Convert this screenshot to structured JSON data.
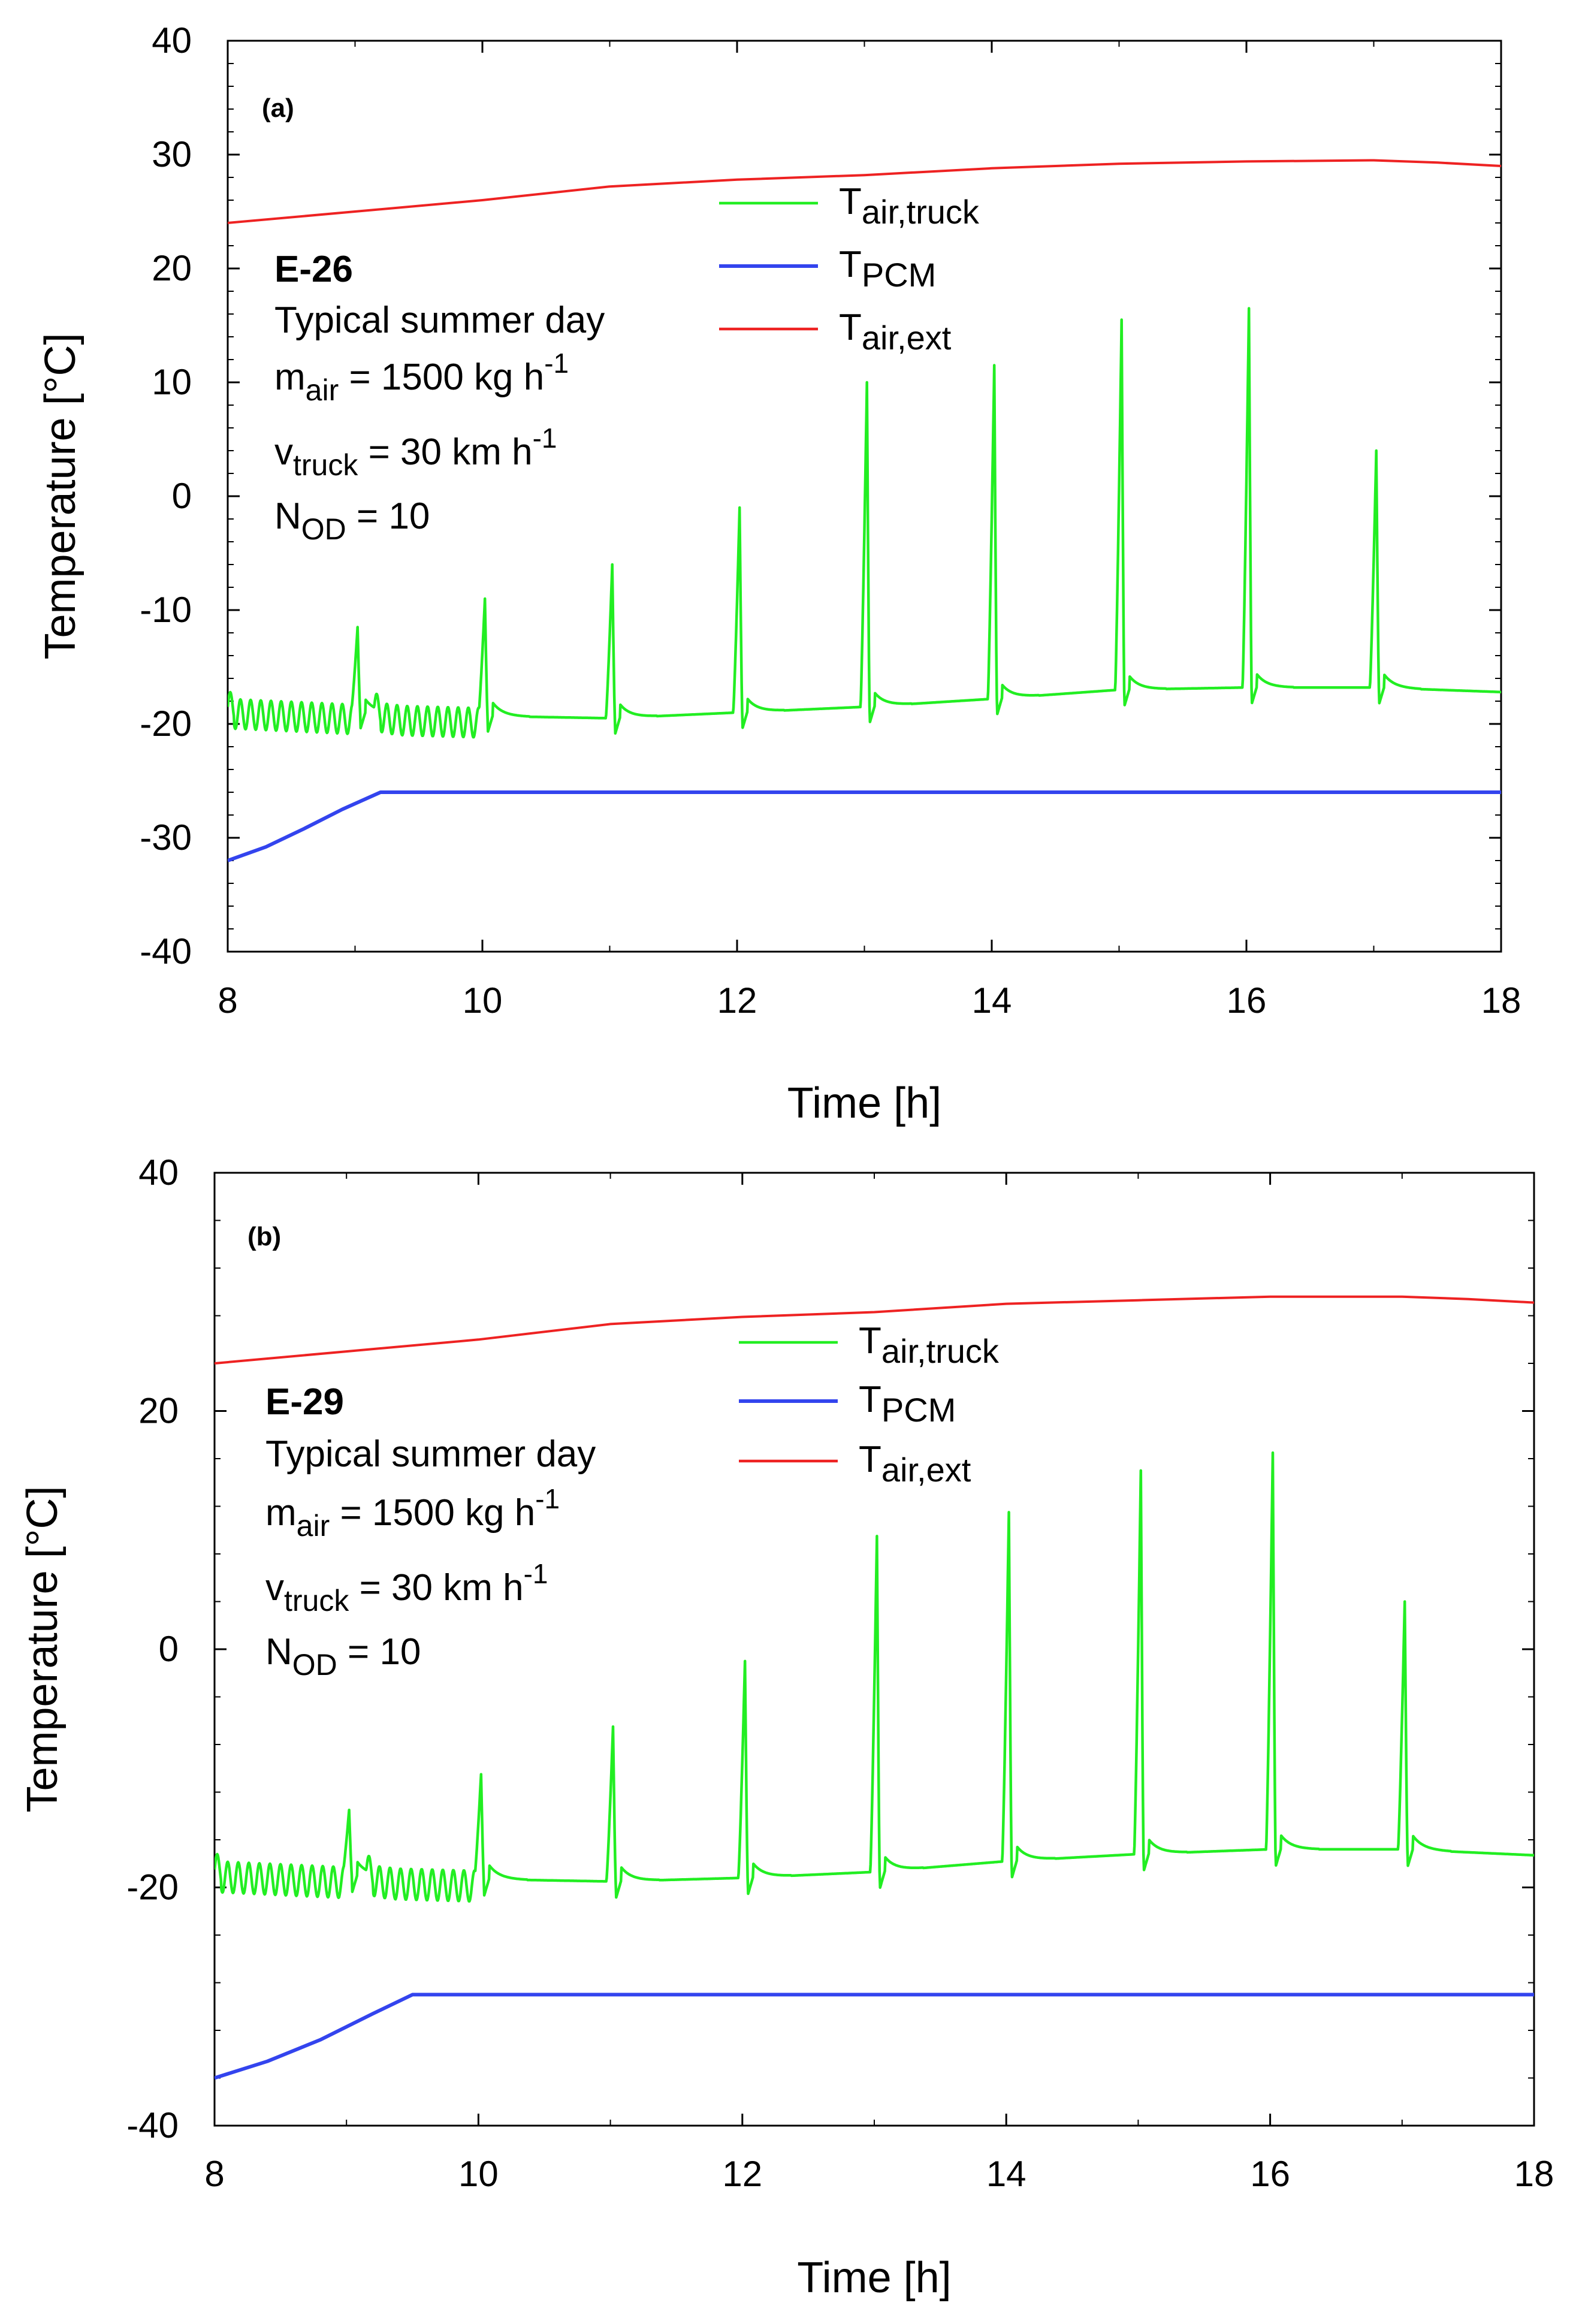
{
  "figure": {
    "panels": [
      "a",
      "b"
    ]
  },
  "chart_data": [
    {
      "type": "line",
      "panel_label": "(a)",
      "xlabel": "Time [h]",
      "ylabel": "Temperature [°C]",
      "xlim": [
        8,
        18
      ],
      "ylim": [
        -40,
        40
      ],
      "xticks": [
        8,
        10,
        12,
        14,
        16,
        18
      ],
      "yticks": [
        -40,
        -30,
        -20,
        -10,
        0,
        10,
        20,
        30,
        40
      ],
      "grid": false,
      "legend": {
        "placement": "upper-center",
        "entries": [
          {
            "main": "T",
            "sub": "air,truck",
            "color": "#22ee22"
          },
          {
            "main": "T",
            "sub": "PCM",
            "color": "#3344ee"
          },
          {
            "main": "T",
            "sub": "air,ext",
            "color": "#ee2222"
          }
        ]
      },
      "annotations": {
        "case_id": "E-26",
        "condition": "Typical summer day",
        "mass_flow": {
          "main": "m",
          "sub": "air",
          "value": " = 1500 kg h",
          "sup": "-1"
        },
        "velocity": {
          "main": "v",
          "sub": "truck",
          "value": " = 30 km h",
          "sup": "-1"
        },
        "openings": {
          "main": "N",
          "sub": "OD",
          "value": " = 10"
        }
      },
      "series": [
        {
          "name": "T_air,ext",
          "color": "#ee2222",
          "x": [
            8,
            9,
            10,
            11,
            12,
            13,
            14,
            15,
            16,
            17,
            17.5,
            18
          ],
          "y": [
            24,
            25,
            26,
            27.2,
            27.8,
            28.2,
            28.8,
            29.2,
            29.4,
            29.5,
            29.3,
            29
          ]
        },
        {
          "name": "T_PCM",
          "color": "#3344ee",
          "x": [
            8,
            8.3,
            8.6,
            8.9,
            9.2,
            18
          ],
          "y": [
            -32,
            -30.8,
            -29.2,
            -27.5,
            -26,
            -26
          ]
        },
        {
          "name": "T_air,truck",
          "color": "#22ee22",
          "base_x": [
            8,
            9,
            10,
            11,
            12,
            13,
            14,
            15,
            16,
            17,
            18
          ],
          "base_y": [
            -18.5,
            -19,
            -19.3,
            -19.5,
            -19,
            -18.5,
            -17.8,
            -17,
            -16.8,
            -16.8,
            -17.2
          ],
          "peaks": [
            {
              "t": 9.02,
              "peak": -11.5
            },
            {
              "t": 10.02,
              "peak": -9
            },
            {
              "t": 11.02,
              "peak": -6
            },
            {
              "t": 12.02,
              "peak": -1
            },
            {
              "t": 13.02,
              "peak": 10
            },
            {
              "t": 14.02,
              "peak": 11.5
            },
            {
              "t": 15.02,
              "peak": 15.5
            },
            {
              "t": 16.02,
              "peak": 16.5
            },
            {
              "t": 17.02,
              "peak": 4
            }
          ],
          "oscillation_ranges": [
            [
              8,
              9
            ],
            [
              9.15,
              10
            ]
          ]
        }
      ]
    },
    {
      "type": "line",
      "panel_label": "(b)",
      "xlabel": "Time [h]",
      "ylabel": "Temperature [°C]",
      "xlim": [
        8,
        18
      ],
      "ylim": [
        -40,
        40
      ],
      "xticks": [
        8,
        10,
        12,
        14,
        16,
        18
      ],
      "yticks": [
        -40,
        -20,
        0,
        20,
        40
      ],
      "grid": false,
      "legend": {
        "placement": "upper-center",
        "entries": [
          {
            "main": "T",
            "sub": "air,truck",
            "color": "#22ee22"
          },
          {
            "main": "T",
            "sub": "PCM",
            "color": "#3344ee"
          },
          {
            "main": "T",
            "sub": "air,ext",
            "color": "#ee2222"
          }
        ]
      },
      "annotations": {
        "case_id": "E-29",
        "condition": "Typical summer day",
        "mass_flow": {
          "main": "m",
          "sub": "air",
          "value": " = 1500 kg h",
          "sup": "-1"
        },
        "velocity": {
          "main": "v",
          "sub": "truck",
          "value": " = 30 km h",
          "sup": "-1"
        },
        "openings": {
          "main": "N",
          "sub": "OD",
          "value": " = 10"
        }
      },
      "series": [
        {
          "name": "T_air,ext",
          "color": "#ee2222",
          "x": [
            8,
            9,
            10,
            11,
            12,
            13,
            14,
            15,
            16,
            17,
            17.5,
            18
          ],
          "y": [
            24,
            25,
            26,
            27.3,
            27.9,
            28.3,
            29,
            29.3,
            29.6,
            29.6,
            29.4,
            29.1
          ]
        },
        {
          "name": "T_PCM",
          "color": "#3344ee",
          "x": [
            8,
            8.4,
            8.8,
            9.2,
            9.5,
            18
          ],
          "y": [
            -36,
            -34.6,
            -32.8,
            -30.6,
            -29,
            -29
          ]
        },
        {
          "name": "T_air,truck",
          "color": "#22ee22",
          "base_x": [
            8,
            9,
            10,
            11,
            12,
            13,
            14,
            15,
            16,
            17,
            18
          ],
          "base_y": [
            -18.5,
            -19,
            -19.3,
            -19.5,
            -19.2,
            -18.7,
            -17.8,
            -17.2,
            -16.8,
            -16.8,
            -17.3
          ],
          "peaks": [
            {
              "t": 9.02,
              "peak": -13.5
            },
            {
              "t": 10.02,
              "peak": -10.5
            },
            {
              "t": 11.02,
              "peak": -6.5
            },
            {
              "t": 12.02,
              "peak": -1
            },
            {
              "t": 13.02,
              "peak": 9.5
            },
            {
              "t": 14.02,
              "peak": 11.5
            },
            {
              "t": 15.02,
              "peak": 15
            },
            {
              "t": 16.02,
              "peak": 16.5
            },
            {
              "t": 17.02,
              "peak": 4
            }
          ],
          "oscillation_ranges": [
            [
              8,
              9
            ],
            [
              9.15,
              10
            ]
          ]
        }
      ]
    }
  ]
}
